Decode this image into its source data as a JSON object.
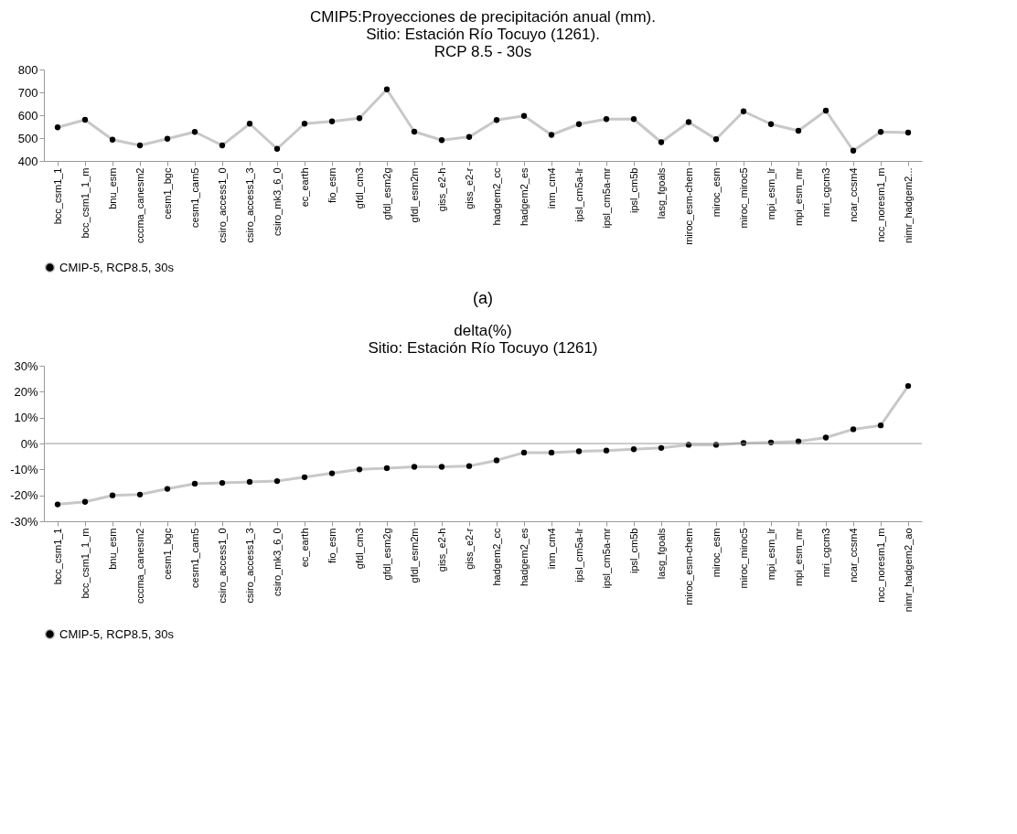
{
  "chart_data": [
    {
      "type": "line",
      "title": "CMIP5:Proyecciones de precipitación anual (mm).\nSitio: Estación Río Tocuyo (1261).\nRCP 8.5 - 30s",
      "categories": [
        "bcc_csm1_1",
        "bcc_csm1_1_m",
        "bnu_esm",
        "cccma_canesm2",
        "cesm1_bgc",
        "cesm1_cam5",
        "csiro_access1_0",
        "csiro_access1_3",
        "csiro_mk3_6_0",
        "ec_earth",
        "fio_esm",
        "gfdl_cm3",
        "gfdl_esm2g",
        "gfdl_esm2m",
        "giss_e2-h",
        "giss_e2-r",
        "hadgem2_cc",
        "hadgem2_es",
        "inm_cm4",
        "ipsl_cm5a-lr",
        "ipsl_cm5a-mr",
        "ipsl_cm5b",
        "lasg_fgoals",
        "miroc_esm-chem",
        "miroc_esm",
        "miroc_miroc5",
        "mpi_esm_lr",
        "mpi_esm_mr",
        "mri_cgcm3",
        "ncar_ccsm4",
        "ncc_noresm1_m",
        "nimr_hadgem2..."
      ],
      "series": [
        {
          "name": "CMIP-5, RCP8.5, 30s",
          "color": "#c8c8c8",
          "values": [
            547,
            580,
            493,
            468,
            497,
            527,
            468,
            563,
            453,
            563,
            573,
            587,
            713,
            528,
            491,
            505,
            579,
            597,
            514,
            561,
            583,
            583,
            482,
            570,
            495,
            617,
            561,
            532,
            620,
            445,
            527,
            524
          ]
        }
      ],
      "ylim": [
        400,
        800
      ],
      "yticks": [
        400,
        500,
        600,
        700,
        800
      ],
      "grid": false,
      "legend": "bottom",
      "marker": "circle",
      "line_style": "solid",
      "annotations": [
        "(a)"
      ]
    },
    {
      "type": "line",
      "title": "delta(%)\nSitio: Estación Río Tocuyo (1261)",
      "categories": [
        "bcc_csm1_1",
        "bcc_csm1_1_m",
        "bnu_esm",
        "cccma_canesm2",
        "cesm1_bgc",
        "cesm1_cam5",
        "csiro_access1_0",
        "csiro_access1_3",
        "csiro_mk3_6_0",
        "ec_earth",
        "fio_esm",
        "gfdl_cm3",
        "gfdl_esm2g",
        "gfdl_esm2m",
        "giss_e2-h",
        "giss_e2-r",
        "hadgem2_cc",
        "hadgem2_es",
        "inm_cm4",
        "ipsl_cm5a-lr",
        "ipsl_cm5a-mr",
        "ipsl_cm5b",
        "lasg_fgoals",
        "miroc_esm-chem",
        "miroc_esm",
        "miroc_miroc5",
        "mpi_esm_lr",
        "mpi_esm_mr",
        "mri_cgcm3",
        "ncar_ccsm4",
        "ncc_noresm1_m",
        "nimr_hadgem2_ao"
      ],
      "series": [
        {
          "name": "CMIP-5, RCP8.5, 30s",
          "color": "#c8c8c8",
          "values": [
            -23.5,
            -22.5,
            -20,
            -19.7,
            -17.5,
            -15.5,
            -15.2,
            -14.8,
            -14.5,
            -13,
            -11.5,
            -10,
            -9.5,
            -9,
            -9,
            -8.7,
            -6.5,
            -3.5,
            -3.5,
            -3,
            -2.7,
            -2.2,
            -1.7,
            -0.5,
            -0.5,
            0.2,
            0.4,
            0.8,
            2.3,
            5.5,
            7,
            22.2
          ]
        }
      ],
      "ylim": [
        -30,
        30
      ],
      "yticks": [
        {
          "value": -30,
          "label": "-30%"
        },
        {
          "value": -20,
          "label": "-20%"
        },
        {
          "value": -10,
          "label": "-10%"
        },
        {
          "value": 0,
          "label": "0%"
        },
        {
          "value": 10,
          "label": "10%"
        },
        {
          "value": 20,
          "label": "20%"
        },
        {
          "value": 30,
          "label": "30%"
        }
      ],
      "grid": false,
      "legend": "bottom",
      "marker": "circle",
      "line_style": "solid",
      "ref_lines": [
        {
          "axis": "y",
          "value": 0,
          "color": "#999999"
        }
      ]
    }
  ]
}
